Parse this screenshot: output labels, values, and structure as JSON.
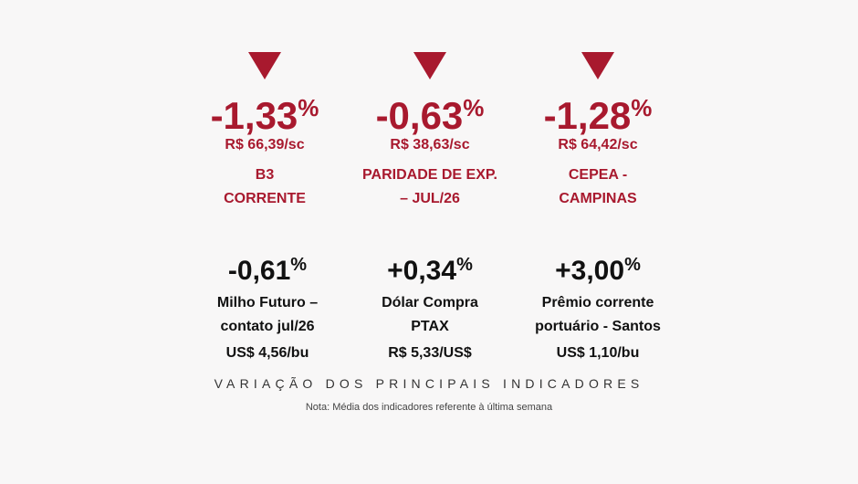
{
  "top_row": [
    {
      "direction": "down",
      "change": "-1,33",
      "unit": "%",
      "price": "R$ 66,39/sc",
      "label_line1": "B3",
      "label_line2": "CORRENTE"
    },
    {
      "direction": "down",
      "change": "-0,63",
      "unit": "%",
      "price": "R$ 38,63/sc",
      "label_line1": "PARIDADE DE EXP.",
      "label_line2": "– JUL/26"
    },
    {
      "direction": "down",
      "change": "-1,28",
      "unit": "%",
      "price": "R$ 64,42/sc",
      "label_line1": "CEPEA -",
      "label_line2": "CAMPINAS"
    }
  ],
  "bottom_row": [
    {
      "change": "-0,61",
      "unit": "%",
      "label_line1": "Milho Futuro –",
      "label_line2": "contato jul/26",
      "price": "US$ 4,56/bu"
    },
    {
      "change": "+0,34",
      "unit": "%",
      "label_line1": "Dólar Compra",
      "label_line2": "PTAX",
      "price": "R$ 5,33/US$"
    },
    {
      "change": "+3,00",
      "unit": "%",
      "label_line1": "Prêmio corrente",
      "label_line2": "portuário - Santos",
      "price": "US$ 1,10/bu"
    }
  ],
  "caption": "VARIAÇÃO DOS PRINCIPAIS INDICADORES",
  "note": "Nota: Média dos indicadores referente à última semana",
  "colors": {
    "accent": "#a8192e",
    "text": "#111111",
    "background": "#f8f7f7"
  },
  "icons": {
    "down_arrow": "down-triangle-icon"
  }
}
